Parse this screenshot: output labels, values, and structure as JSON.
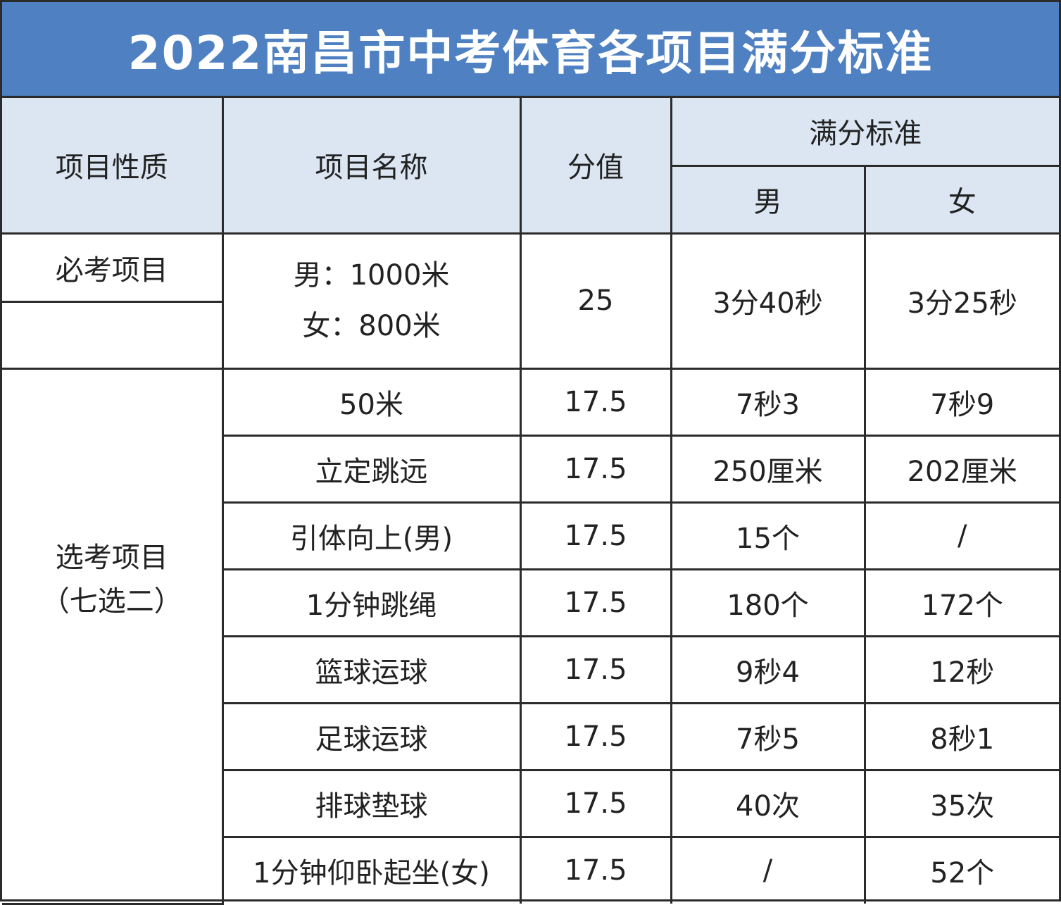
{
  "title": "2022南昌市中考体育各项目满分标准",
  "headers": {
    "nature": "项目性质",
    "name": "项目名称",
    "score": "分值",
    "standard": "满分标准",
    "male": "男",
    "female": "女"
  },
  "categories": {
    "required": "必考项目",
    "elective_line1": "选考项目",
    "elective_line2": "（七选二）"
  },
  "rows": [
    {
      "name": "男：1000米",
      "name2": "女：800米",
      "score": "25",
      "male": "3分40秒",
      "female": "3分25秒"
    },
    {
      "name": "50米",
      "score": "17.5",
      "male": "7秒3",
      "female": "7秒9"
    },
    {
      "name": "立定跳远",
      "score": "17.5",
      "male": "250厘米",
      "female": "202厘米"
    },
    {
      "name": "引体向上(男)",
      "score": "17.5",
      "male": "15个",
      "female": "/"
    },
    {
      "name": "1分钟跳绳",
      "score": "17.5",
      "male": "180个",
      "female": "172个"
    },
    {
      "name": "篮球运球",
      "score": "17.5",
      "male": "9秒4",
      "female": "12秒"
    },
    {
      "name": "足球运球",
      "score": "17.5",
      "male": "7秒5",
      "female": "8秒1"
    },
    {
      "name": "排球垫球",
      "score": "17.5",
      "male": "40次",
      "female": "35次"
    },
    {
      "name": "1分钟仰卧起坐(女)",
      "score": "17.5",
      "male": "/",
      "female": "52个"
    }
  ],
  "colors": {
    "title_bg": "#4f81c2",
    "header_bg": "#dbe6f2"
  }
}
